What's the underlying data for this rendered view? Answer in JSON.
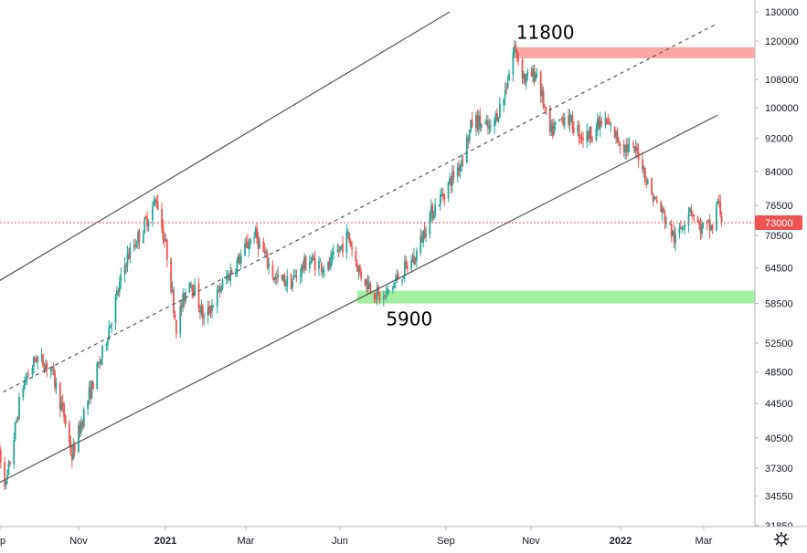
{
  "chart_data": {
    "type": "candlestick",
    "title": "",
    "xlabel": "",
    "ylabel": "",
    "x_tick_labels": [
      "p",
      "Nov",
      "2021",
      "Mar",
      "Jun",
      "Sep",
      "Nov",
      "2022",
      "Mar"
    ],
    "y_tick_labels": [
      "130000",
      "120000",
      "108000",
      "100000",
      "92000",
      "84000",
      "76500",
      "70500",
      "64500",
      "58500",
      "52500",
      "48500",
      "44500",
      "40500",
      "37300",
      "34550",
      "31850"
    ],
    "ylim": [
      31850,
      130000
    ],
    "y_scale": "log",
    "grid": false,
    "colors": {
      "up": "#26a69a",
      "down": "#ef5350",
      "line": "#555555",
      "resistance_zone": "#fca5a5",
      "support_zone": "#a3f0a3",
      "last_price": "#ef5350"
    },
    "last_price": {
      "label": "73000",
      "value": 73000
    },
    "annotations": [
      {
        "text": "11800",
        "date": "2021-09-28",
        "price": 119500
      },
      {
        "text": "5900",
        "date": "2021-06-20",
        "price": 58200
      }
    ],
    "zones": [
      {
        "name": "resistance",
        "low": 114500,
        "high": 118000,
        "from": "2021-09-28"
      },
      {
        "name": "support",
        "low": 58500,
        "high": 60600,
        "from": "2021-06-01"
      }
    ],
    "trend_lines": [
      {
        "style": "solid",
        "from": [
          "2020-09-01",
          62000
        ],
        "to": [
          "2021-08-10",
          130000
        ]
      },
      {
        "style": "dashed",
        "from": [
          "2020-09-01",
          45500
        ],
        "to": [
          "2022-03-01",
          126000
        ]
      },
      {
        "style": "solid",
        "from": [
          "2020-09-01",
          35700
        ],
        "to": [
          "2022-03-01",
          98000
        ]
      }
    ],
    "x_start": "2020-08-31",
    "x_end": "2022-03-25",
    "ohlc_anchors": [
      [
        "2020-09-01",
        40500
      ],
      [
        "2020-09-08",
        35500
      ],
      [
        "2020-09-20",
        46500
      ],
      [
        "2020-10-01",
        50500
      ],
      [
        "2020-10-12",
        49000
      ],
      [
        "2020-10-22",
        43000
      ],
      [
        "2020-10-28",
        38500
      ],
      [
        "2020-11-08",
        44500
      ],
      [
        "2020-11-20",
        51000
      ],
      [
        "2020-12-08",
        66000
      ],
      [
        "2020-12-20",
        71500
      ],
      [
        "2020-12-31",
        78000
      ],
      [
        "2021-01-08",
        67000
      ],
      [
        "2021-01-15",
        55000
      ],
      [
        "2021-01-25",
        63000
      ],
      [
        "2021-02-05",
        56000
      ],
      [
        "2021-02-20",
        62000
      ],
      [
        "2021-03-05",
        66500
      ],
      [
        "2021-03-15",
        71000
      ],
      [
        "2021-03-31",
        62500
      ],
      [
        "2021-04-12",
        62000
      ],
      [
        "2021-04-25",
        66000
      ],
      [
        "2021-05-10",
        64500
      ],
      [
        "2021-05-25",
        70500
      ],
      [
        "2021-06-03",
        63500
      ],
      [
        "2021-06-20",
        59000
      ],
      [
        "2021-07-01",
        62500
      ],
      [
        "2021-07-15",
        66500
      ],
      [
        "2021-07-25",
        74000
      ],
      [
        "2021-08-05",
        79000
      ],
      [
        "2021-08-18",
        86000
      ],
      [
        "2021-08-28",
        97000
      ],
      [
        "2021-09-10",
        94000
      ],
      [
        "2021-09-20",
        103000
      ],
      [
        "2021-09-28",
        118000
      ],
      [
        "2021-10-06",
        108000
      ],
      [
        "2021-10-15",
        110000
      ],
      [
        "2021-10-25",
        93000
      ],
      [
        "2021-11-05",
        98000
      ],
      [
        "2021-11-20",
        92000
      ],
      [
        "2021-12-05",
        96500
      ],
      [
        "2021-12-20",
        90000
      ],
      [
        "2022-01-01",
        88000
      ],
      [
        "2022-01-08",
        80000
      ],
      [
        "2022-01-20",
        74000
      ],
      [
        "2022-01-28",
        69500
      ],
      [
        "2022-02-08",
        76500
      ],
      [
        "2022-02-15",
        72000
      ],
      [
        "2022-02-25",
        72000
      ],
      [
        "2022-03-01",
        77500
      ],
      [
        "2022-03-05",
        73000
      ]
    ]
  },
  "ui": {
    "settings_icon": "gear-icon"
  }
}
